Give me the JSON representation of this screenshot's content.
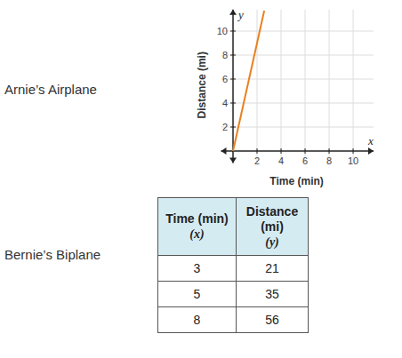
{
  "labels": [
    "Arnie’s Airplane",
    "Bernie’s Biplane"
  ],
  "chart_data": {
    "type": "line",
    "xlabel": "Time (min)",
    "ylabel": "Distance (mi)",
    "axis_names": {
      "x": "x",
      "y": "y"
    },
    "x": [
      0,
      2.6
    ],
    "values": [
      0,
      11.7
    ],
    "color": "#e8811f",
    "xlim": [
      -1,
      11.7
    ],
    "ylim": [
      -1,
      11.8
    ],
    "xticks": [
      2,
      4,
      6,
      8,
      10
    ],
    "yticks": [
      2,
      4,
      6,
      8,
      10
    ],
    "grid": true
  },
  "table": {
    "header": [
      [
        "Time (min)",
        "(x)"
      ],
      [
        "Distance (mi)",
        "(y)"
      ]
    ],
    "rows": [
      [
        3,
        21
      ],
      [
        5,
        35
      ],
      [
        8,
        56
      ]
    ]
  }
}
